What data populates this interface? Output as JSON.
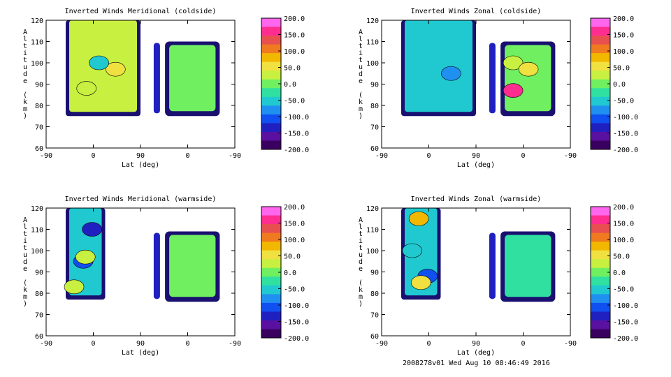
{
  "footer": "2008278v01 Wed Aug 10 08:46:49 2016",
  "colorbar": {
    "levels": [
      "200.0",
      "150.0",
      "100.0",
      "50.0",
      "0.0",
      "-50.0",
      "-100.0",
      "-150.0",
      "-200.0"
    ],
    "colors": [
      "#ff66ee",
      "#ff2d8f",
      "#e85050",
      "#f07a20",
      "#f2b800",
      "#f0e040",
      "#c8f040",
      "#70f060",
      "#30e0a0",
      "#20c8d0",
      "#2090f0",
      "#1050f0",
      "#2020c0",
      "#5a10a0",
      "#3a0060"
    ]
  },
  "chart_data": [
    {
      "type": "heatmap",
      "title": "Inverted Winds Meridional (coldside)",
      "xlabel": "Lat (deg)",
      "ylabel": "Altitude (km)",
      "xticks": [
        "-90",
        "0",
        "90",
        "0",
        "-90"
      ],
      "yticks": [
        "60",
        "70",
        "80",
        "90",
        "100",
        "110",
        "120"
      ],
      "ylim": [
        60,
        120
      ],
      "zlim": [
        -200,
        200
      ],
      "regions": [
        {
          "lat": [
            -90,
            90
          ],
          "alt": [
            75,
            120
          ],
          "mean_wind": 20
        },
        {
          "lat": [
            -130,
            -90
          ],
          "alt": [
            75,
            110
          ],
          "mean_wind": 0
        }
      ],
      "features": [
        {
          "lat": 30,
          "alt": 97,
          "wind": 50
        },
        {
          "lat": -10,
          "alt": 100,
          "wind": -40
        },
        {
          "lat": -40,
          "alt": 88,
          "wind": 20
        }
      ]
    },
    {
      "type": "heatmap",
      "title": "Inverted Winds Zonal (coldside)",
      "xlabel": "Lat (deg)",
      "ylabel": "Altitude (km)",
      "xticks": [
        "-90",
        "0",
        "90",
        "0",
        "-90"
      ],
      "yticks": [
        "60",
        "70",
        "80",
        "90",
        "100",
        "110",
        "120"
      ],
      "ylim": [
        60,
        120
      ],
      "zlim": [
        -200,
        200
      ],
      "regions": [
        {
          "lat": [
            -90,
            90
          ],
          "alt": [
            75,
            120
          ],
          "mean_wind": -40
        },
        {
          "lat": [
            -130,
            -90
          ],
          "alt": [
            75,
            110
          ],
          "mean_wind": 0
        }
      ],
      "features": [
        {
          "lat": 30,
          "alt": 95,
          "wind": -90
        },
        {
          "lat": -60,
          "alt": 100,
          "wind": 20
        },
        {
          "lat": -50,
          "alt": 87,
          "wind": 150
        },
        {
          "lat": -80,
          "alt": 97,
          "wind": 60
        }
      ]
    },
    {
      "type": "heatmap",
      "title": "Inverted Winds Meridional (warmside)",
      "xlabel": "Lat (deg)",
      "ylabel": "Altitude (km)",
      "xticks": [
        "-90",
        "0",
        "90",
        "0",
        "-90"
      ],
      "yticks": [
        "60",
        "70",
        "80",
        "90",
        "100",
        "110",
        "120"
      ],
      "ylim": [
        60,
        120
      ],
      "zlim": [
        -200,
        200
      ],
      "regions": [
        {
          "lat": [
            -90,
            60
          ],
          "alt": [
            77,
            120
          ],
          "mean_wind": -50
        },
        {
          "lat": [
            -130,
            -90
          ],
          "alt": [
            76,
            109
          ],
          "mean_wind": -10
        }
      ],
      "features": [
        {
          "lat": -10,
          "alt": 95,
          "wind": -110
        },
        {
          "lat": -60,
          "alt": 83,
          "wind": 40
        },
        {
          "lat": 30,
          "alt": 110,
          "wind": -130
        },
        {
          "lat": 0,
          "alt": 97,
          "wind": 40
        }
      ]
    },
    {
      "type": "heatmap",
      "title": "Inverted Winds Zonal (warmside)",
      "xlabel": "Lat (deg)",
      "ylabel": "Altitude (km)",
      "xticks": [
        "-90",
        "0",
        "90",
        "0",
        "-90"
      ],
      "yticks": [
        "60",
        "70",
        "80",
        "90",
        "100",
        "110",
        "120"
      ],
      "ylim": [
        60,
        120
      ],
      "zlim": [
        -200,
        200
      ],
      "regions": [
        {
          "lat": [
            -90,
            60
          ],
          "alt": [
            77,
            120
          ],
          "mean_wind": -40
        },
        {
          "lat": [
            -130,
            -90
          ],
          "alt": [
            76,
            109
          ],
          "mean_wind": -30
        }
      ],
      "features": [
        {
          "lat": -10,
          "alt": 115,
          "wind": 70
        },
        {
          "lat": 30,
          "alt": 88,
          "wind": -110
        },
        {
          "lat": -40,
          "alt": 100,
          "wind": -60
        },
        {
          "lat": 0,
          "alt": 85,
          "wind": 60
        }
      ]
    }
  ]
}
